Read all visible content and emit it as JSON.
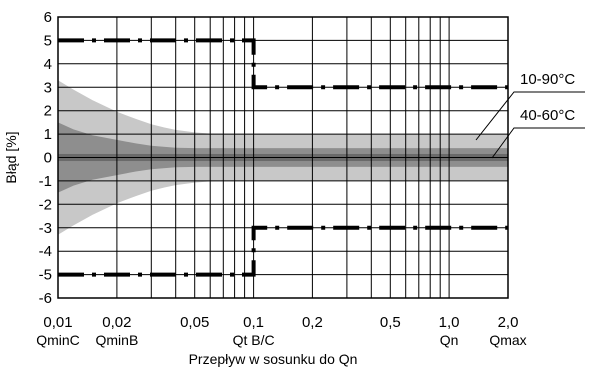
{
  "chart_data": {
    "type": "line",
    "title": "",
    "xlabel": "Przepływ w sosunku do Qn",
    "ylabel": "Błąd [%]",
    "xscale": "log",
    "xlim": [
      0.01,
      2.0
    ],
    "ylim": [
      -6,
      6
    ],
    "grid": true,
    "x_ticks": [
      {
        "value": 0.01,
        "label": "0,01",
        "sublabel": "QminC"
      },
      {
        "value": 0.02,
        "label": "0,02",
        "sublabel": "QminB"
      },
      {
        "value": 0.05,
        "label": "0,05",
        "sublabel": ""
      },
      {
        "value": 0.1,
        "label": "0,1",
        "sublabel": "Qt B/C"
      },
      {
        "value": 0.2,
        "label": "0,2",
        "sublabel": ""
      },
      {
        "value": 0.5,
        "label": "0,5",
        "sublabel": ""
      },
      {
        "value": 1.0,
        "label": "1,0",
        "sublabel": "Qn"
      },
      {
        "value": 2.0,
        "label": "2,0",
        "sublabel": "Qmax"
      }
    ],
    "y_ticks": [
      "6",
      "5",
      "4",
      "3",
      "2",
      "1",
      "0",
      "-1",
      "-2",
      "-3",
      "-4",
      "-5",
      "-6"
    ],
    "y_tick_values": [
      6,
      5,
      4,
      3,
      2,
      1,
      0,
      -1,
      -2,
      -3,
      -4,
      -5,
      -6
    ],
    "x_gridlines": [
      0.01,
      0.02,
      0.03,
      0.04,
      0.05,
      0.06,
      0.07,
      0.08,
      0.09,
      0.1,
      0.2,
      0.3,
      0.4,
      0.5,
      0.6,
      0.7,
      0.8,
      0.9,
      1.0,
      2.0
    ],
    "error_limits": {
      "upper": [
        {
          "x": 0.01,
          "y": 5
        },
        {
          "x": 0.1,
          "y": 5
        },
        {
          "x": 0.1,
          "y": 3
        },
        {
          "x": 2.0,
          "y": 3
        }
      ],
      "lower": [
        {
          "x": 0.01,
          "y": -5
        },
        {
          "x": 0.1,
          "y": -5
        },
        {
          "x": 0.1,
          "y": -3
        },
        {
          "x": 2.0,
          "y": -3
        }
      ]
    },
    "bands": [
      {
        "label": "10-90°C",
        "color": "#c8c8c8",
        "halfwidth": [
          {
            "x": 0.01,
            "y": 3.3
          },
          {
            "x": 0.012,
            "y": 2.9
          },
          {
            "x": 0.015,
            "y": 2.45
          },
          {
            "x": 0.02,
            "y": 1.95
          },
          {
            "x": 0.025,
            "y": 1.65
          },
          {
            "x": 0.03,
            "y": 1.42
          },
          {
            "x": 0.035,
            "y": 1.28
          },
          {
            "x": 0.04,
            "y": 1.18
          },
          {
            "x": 0.05,
            "y": 1.07
          },
          {
            "x": 0.06,
            "y": 1.02
          },
          {
            "x": 0.08,
            "y": 1.0
          },
          {
            "x": 2.0,
            "y": 1.0
          }
        ]
      },
      {
        "label": "40-60°C",
        "color": "#8e8e8e",
        "halfwidth": [
          {
            "x": 0.01,
            "y": 1.5
          },
          {
            "x": 0.012,
            "y": 1.2
          },
          {
            "x": 0.015,
            "y": 0.95
          },
          {
            "x": 0.02,
            "y": 0.75
          },
          {
            "x": 0.025,
            "y": 0.6
          },
          {
            "x": 0.03,
            "y": 0.5
          },
          {
            "x": 0.04,
            "y": 0.42
          },
          {
            "x": 0.05,
            "y": 0.4
          },
          {
            "x": 2.0,
            "y": 0.4
          }
        ]
      }
    ],
    "core_band": {
      "halfwidth": 0.15,
      "color": "#6a6a6a"
    },
    "annotations": [
      {
        "text": "10-90°C",
        "x": 1.9,
        "y": 3.0
      },
      {
        "text": "40-60°C",
        "x": 1.9,
        "y": 1.5
      }
    ]
  }
}
